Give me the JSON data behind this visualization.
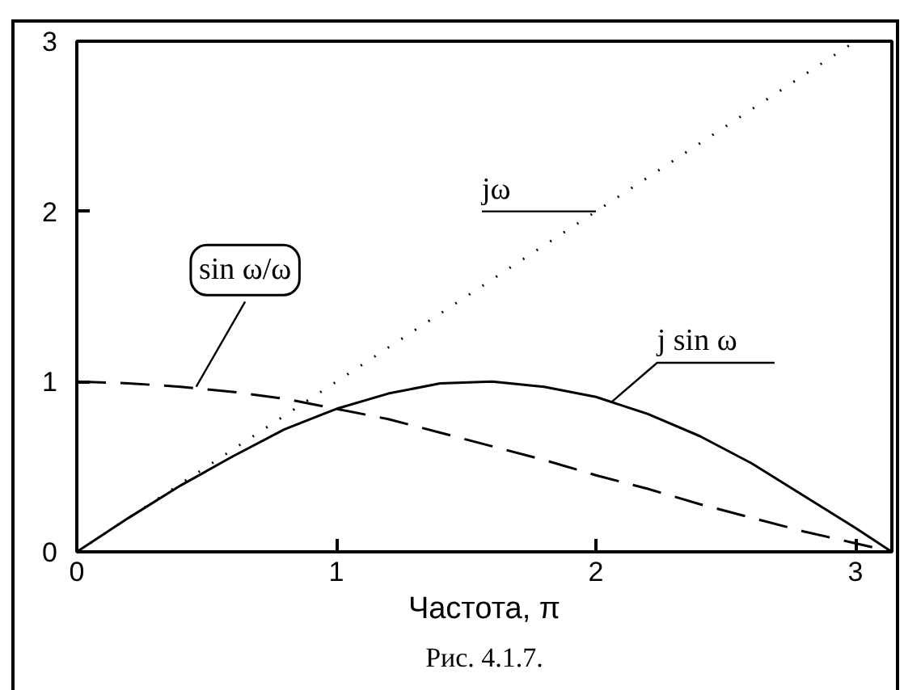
{
  "chart_data": {
    "type": "line",
    "xlabel": "Частота, π",
    "xlim": [
      0,
      3.14
    ],
    "ylim": [
      0,
      3
    ],
    "xticks": [
      0,
      1,
      2,
      3
    ],
    "yticks": [
      0,
      1,
      2,
      3
    ],
    "series": [
      {
        "color": "#000000",
        "line_style": "dotted",
        "x": [
          0,
          3
        ],
        "values": [
          0,
          3
        ]
      },
      {
        "color": "#000000",
        "line_style": "solid",
        "x": [
          0,
          0.2,
          0.4,
          0.6,
          0.8,
          1.0,
          1.2,
          1.4,
          1.6,
          1.8,
          2.0,
          2.2,
          2.4,
          2.6,
          2.8,
          3.0,
          3.14
        ],
        "values": [
          0,
          0.2,
          0.39,
          0.56,
          0.72,
          0.84,
          0.93,
          0.99,
          1.0,
          0.97,
          0.91,
          0.81,
          0.68,
          0.52,
          0.33,
          0.14,
          0
        ]
      },
      {
        "color": "#000000",
        "line_style": "dashed",
        "x": [
          0,
          0.2,
          0.4,
          0.6,
          0.8,
          1.0,
          1.2,
          1.4,
          1.6,
          1.8,
          2.0,
          2.2,
          2.4,
          2.6,
          2.8,
          3.0,
          3.14
        ],
        "values": [
          1.0,
          0.99,
          0.97,
          0.94,
          0.9,
          0.84,
          0.78,
          0.7,
          0.62,
          0.54,
          0.45,
          0.37,
          0.28,
          0.2,
          0.12,
          0.05,
          0
        ]
      }
    ],
    "annotations": [
      {
        "text": "sin ω/ω",
        "x": 0.46,
        "y": 0.97
      },
      {
        "text": "jω",
        "x": 2.0,
        "y": 2.0
      },
      {
        "text": "j sin ω",
        "x": 2.06,
        "y": 0.88
      },
      "Рис. 4.1.7."
    ]
  }
}
